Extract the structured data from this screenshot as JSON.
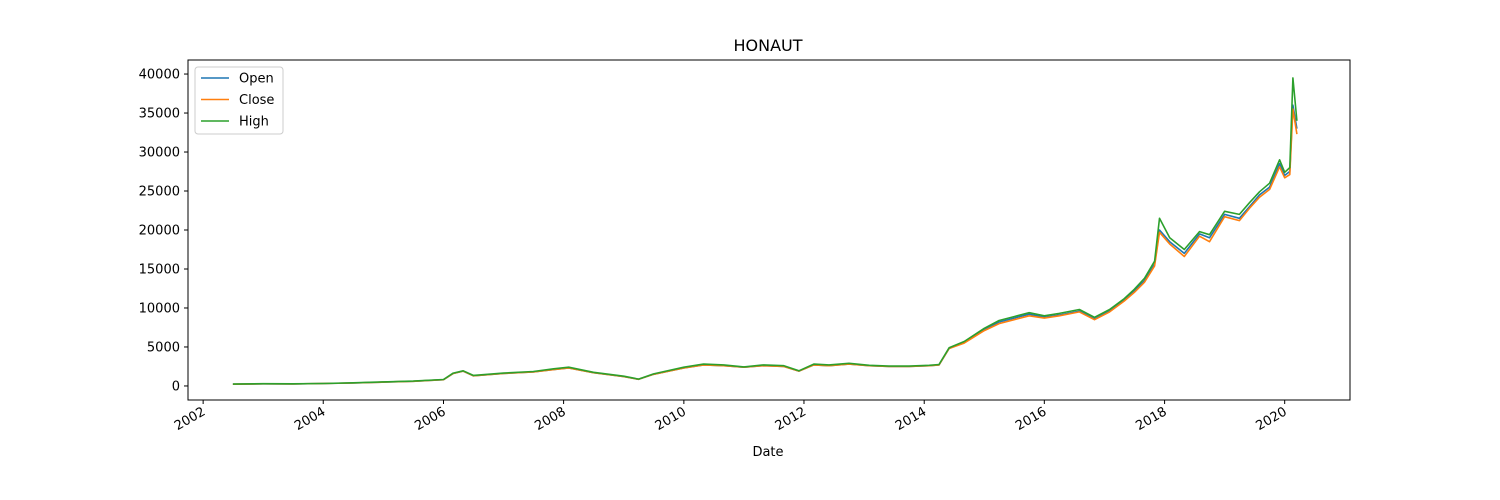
{
  "chart_data": {
    "type": "line",
    "title": "HONAUT",
    "xlabel": "Date",
    "ylabel": "",
    "xlim": [
      "2001-10-01",
      "2021-02-01"
    ],
    "ylim": [
      -1800,
      41800
    ],
    "x_ticks": [
      "2002",
      "2004",
      "2006",
      "2008",
      "2010",
      "2012",
      "2014",
      "2016",
      "2018",
      "2020"
    ],
    "y_ticks": [
      0,
      5000,
      10000,
      15000,
      20000,
      25000,
      30000,
      35000,
      40000
    ],
    "legend_position": "upper-left",
    "grid": false,
    "x": [
      "2002-07-01",
      "2003-01-01",
      "2003-07-01",
      "2004-01-01",
      "2004-07-01",
      "2005-01-01",
      "2005-07-01",
      "2006-01-01",
      "2006-03-01",
      "2006-05-01",
      "2006-07-01",
      "2007-01-01",
      "2007-07-01",
      "2007-11-01",
      "2008-02-01",
      "2008-07-01",
      "2009-01-01",
      "2009-04-01",
      "2009-07-01",
      "2010-01-01",
      "2010-05-01",
      "2010-09-01",
      "2011-01-01",
      "2011-05-01",
      "2011-09-01",
      "2011-12-01",
      "2012-03-01",
      "2012-06-01",
      "2012-10-01",
      "2013-02-01",
      "2013-06-01",
      "2013-10-01",
      "2014-02-01",
      "2014-04-01",
      "2014-06-01",
      "2014-09-01",
      "2015-01-01",
      "2015-04-01",
      "2015-07-01",
      "2015-10-01",
      "2016-01-01",
      "2016-04-01",
      "2016-08-01",
      "2016-11-01",
      "2017-02-01",
      "2017-05-01",
      "2017-07-01",
      "2017-09-01",
      "2017-11-01",
      "2017-12-01",
      "2018-02-01",
      "2018-05-01",
      "2018-08-01",
      "2018-10-01",
      "2019-01-01",
      "2019-04-01",
      "2019-06-01",
      "2019-08-01",
      "2019-10-01",
      "2019-12-01",
      "2020-01-01",
      "2020-02-01",
      "2020-02-20",
      "2020-03-15"
    ],
    "series": [
      {
        "name": "Open",
        "color": "#1f77b4",
        "values": [
          230,
          280,
          270,
          310,
          380,
          500,
          600,
          800,
          1600,
          1900,
          1300,
          1600,
          1800,
          2100,
          2300,
          1700,
          1200,
          850,
          1500,
          2300,
          2700,
          2600,
          2400,
          2600,
          2500,
          1900,
          2700,
          2600,
          2800,
          2600,
          2500,
          2500,
          2600,
          2700,
          4800,
          5600,
          7200,
          8200,
          8700,
          9200,
          8800,
          9100,
          9600,
          8600,
          9600,
          11000,
          12200,
          13500,
          15600,
          20000,
          18500,
          17000,
          19500,
          19000,
          22000,
          21500,
          23000,
          24500,
          25500,
          28500,
          27000,
          27500,
          36000,
          33000
        ]
      },
      {
        "name": "Close",
        "color": "#ff7f0e",
        "values": [
          230,
          280,
          270,
          310,
          380,
          500,
          600,
          800,
          1600,
          1900,
          1300,
          1600,
          1800,
          2100,
          2300,
          1700,
          1200,
          850,
          1500,
          2300,
          2700,
          2600,
          2400,
          2600,
          2500,
          1900,
          2700,
          2600,
          2800,
          2600,
          2500,
          2500,
          2600,
          2700,
          4800,
          5500,
          7100,
          8000,
          8500,
          9000,
          8700,
          9000,
          9500,
          8500,
          9500,
          10900,
          12000,
          13300,
          15400,
          19700,
          18200,
          16600,
          19200,
          18500,
          21700,
          21200,
          22800,
          24200,
          25200,
          28100,
          26700,
          27100,
          35500,
          32300
        ]
      },
      {
        "name": "High",
        "color": "#2ca02c",
        "values": [
          240,
          290,
          280,
          320,
          400,
          520,
          620,
          830,
          1650,
          1950,
          1350,
          1650,
          1850,
          2200,
          2400,
          1750,
          1250,
          880,
          1550,
          2400,
          2800,
          2700,
          2450,
          2700,
          2600,
          1950,
          2800,
          2700,
          2900,
          2650,
          2550,
          2550,
          2650,
          2750,
          4900,
          5700,
          7400,
          8400,
          8900,
          9400,
          9000,
          9300,
          9800,
          8800,
          9800,
          11200,
          12400,
          13800,
          16000,
          21500,
          19000,
          17500,
          19800,
          19400,
          22400,
          22000,
          23500,
          24900,
          26000,
          29000,
          27400,
          28000,
          39500,
          34000
        ]
      }
    ]
  }
}
